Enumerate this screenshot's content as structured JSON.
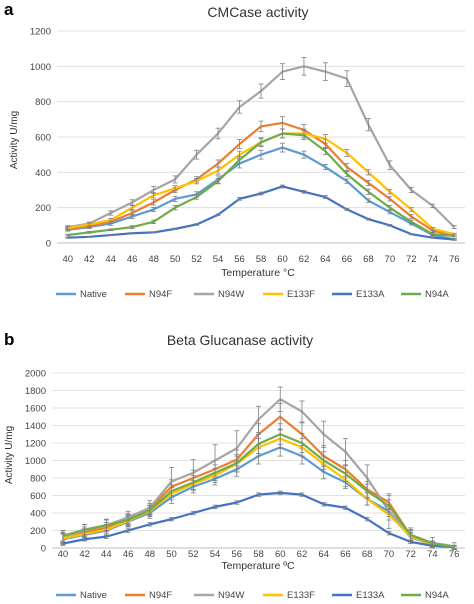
{
  "colors": {
    "Native": "#5b9bd5",
    "N94F": "#ed7d31",
    "N94W": "#a5a5a5",
    "E133F": "#ffc000",
    "E133A": "#4472c4",
    "N94A": "#70ad47"
  },
  "chart_data": [
    {
      "panel_label": "a",
      "type": "line",
      "title": "CMCase activity",
      "xlabel": "Temperature °C",
      "ylabel": "Activity U/mg",
      "ylim": [
        0,
        1200
      ],
      "yticks": [
        0,
        200,
        400,
        600,
        800,
        1000,
        1200
      ],
      "grid": "horizontal",
      "legend_position": "bottom",
      "categories": [
        "40",
        "42",
        "44",
        "46",
        "48",
        "50",
        "52",
        "54",
        "56",
        "58",
        "60",
        "62",
        "64",
        "66",
        "68",
        "70",
        "72",
        "74",
        "76"
      ],
      "series": [
        {
          "name": "Native",
          "values": [
            75,
            90,
            110,
            150,
            190,
            250,
            275,
            360,
            450,
            500,
            540,
            500,
            430,
            350,
            240,
            175,
            110,
            45,
            20
          ],
          "errors": [
            8,
            8,
            10,
            12,
            12,
            15,
            15,
            20,
            25,
            25,
            25,
            20,
            15,
            12,
            10,
            10,
            8,
            5,
            5
          ]
        },
        {
          "name": "N94F",
          "values": [
            80,
            95,
            120,
            170,
            230,
            300,
            360,
            450,
            560,
            660,
            680,
            640,
            560,
            430,
            340,
            250,
            150,
            70,
            40
          ],
          "errors": [
            8,
            8,
            10,
            12,
            15,
            15,
            15,
            20,
            25,
            30,
            35,
            30,
            25,
            20,
            15,
            12,
            10,
            8,
            5
          ]
        },
        {
          "name": "N94W",
          "values": [
            90,
            110,
            170,
            230,
            300,
            360,
            500,
            620,
            770,
            860,
            970,
            1000,
            970,
            930,
            670,
            440,
            300,
            210,
            90
          ],
          "errors": [
            8,
            8,
            12,
            15,
            20,
            20,
            25,
            30,
            35,
            40,
            45,
            50,
            50,
            45,
            35,
            25,
            15,
            10,
            8
          ]
        },
        {
          "name": "E133F",
          "values": [
            85,
            105,
            130,
            200,
            270,
            310,
            350,
            410,
            500,
            570,
            620,
            620,
            590,
            510,
            400,
            290,
            190,
            80,
            50
          ],
          "errors": [
            8,
            8,
            10,
            12,
            15,
            15,
            15,
            20,
            20,
            25,
            25,
            25,
            25,
            20,
            15,
            12,
            10,
            8,
            5
          ]
        },
        {
          "name": "E133A",
          "values": [
            30,
            35,
            45,
            55,
            60,
            80,
            105,
            160,
            250,
            280,
            320,
            290,
            260,
            190,
            135,
            100,
            50,
            30,
            20
          ],
          "errors": [
            3,
            3,
            3,
            3,
            3,
            4,
            5,
            5,
            8,
            8,
            8,
            8,
            8,
            6,
            5,
            5,
            3,
            3,
            3
          ]
        },
        {
          "name": "N94A",
          "values": [
            45,
            60,
            75,
            90,
            120,
            200,
            260,
            350,
            470,
            570,
            620,
            610,
            520,
            390,
            290,
            200,
            120,
            50,
            40
          ],
          "errors": [
            5,
            5,
            5,
            8,
            10,
            12,
            12,
            15,
            20,
            20,
            25,
            25,
            20,
            15,
            15,
            12,
            10,
            8,
            5
          ]
        }
      ]
    },
    {
      "panel_label": "b",
      "type": "line",
      "title": "Beta Glucanase activity",
      "xlabel": "Temperature ºC",
      "ylabel": "Activity U/mg",
      "ylim": [
        0,
        2000
      ],
      "yticks": [
        0,
        200,
        400,
        600,
        800,
        1000,
        1200,
        1400,
        1600,
        1800,
        2000
      ],
      "grid": "horizontal",
      "legend_position": "bottom",
      "categories": [
        "40",
        "42",
        "44",
        "46",
        "48",
        "50",
        "52",
        "54",
        "56",
        "58",
        "60",
        "62",
        "64",
        "66",
        "68",
        "70",
        "72",
        "74",
        "76"
      ],
      "series": [
        {
          "name": "Native",
          "values": [
            100,
            150,
            200,
            300,
            400,
            580,
            700,
            790,
            900,
            1050,
            1150,
            1050,
            870,
            750,
            560,
            420,
            120,
            40,
            10
          ],
          "errors": [
            60,
            60,
            60,
            60,
            60,
            70,
            70,
            70,
            80,
            90,
            100,
            90,
            80,
            70,
            70,
            60,
            50,
            30,
            20
          ]
        },
        {
          "name": "N94F",
          "values": [
            120,
            180,
            230,
            330,
            450,
            700,
            800,
            900,
            1010,
            1300,
            1500,
            1300,
            1050,
            900,
            670,
            520,
            140,
            30,
            10
          ],
          "errors": [
            60,
            60,
            60,
            60,
            60,
            80,
            90,
            100,
            110,
            120,
            150,
            130,
            120,
            100,
            90,
            80,
            60,
            30,
            20
          ]
        },
        {
          "name": "N94W",
          "values": [
            130,
            200,
            260,
            350,
            460,
            760,
            860,
            1000,
            1140,
            1470,
            1700,
            1560,
            1300,
            1100,
            800,
            420,
            150,
            60,
            20
          ],
          "errors": [
            70,
            70,
            70,
            70,
            80,
            160,
            150,
            180,
            200,
            150,
            140,
            120,
            150,
            150,
            150,
            200,
            80,
            60,
            40
          ]
        },
        {
          "name": "E133F",
          "values": [
            110,
            160,
            210,
            310,
            420,
            620,
            730,
            830,
            960,
            1150,
            1250,
            1150,
            960,
            780,
            560,
            380,
            130,
            40,
            10
          ],
          "errors": [
            60,
            60,
            60,
            60,
            60,
            70,
            70,
            80,
            90,
            100,
            110,
            100,
            90,
            80,
            70,
            60,
            50,
            30,
            20
          ]
        },
        {
          "name": "E133A",
          "values": [
            50,
            100,
            130,
            200,
            270,
            330,
            400,
            470,
            520,
            610,
            630,
            610,
            500,
            460,
            330,
            170,
            70,
            25,
            10
          ],
          "errors": [
            20,
            20,
            20,
            20,
            20,
            20,
            20,
            20,
            20,
            20,
            20,
            20,
            20,
            20,
            20,
            20,
            20,
            15,
            10
          ]
        },
        {
          "name": "N94A",
          "values": [
            140,
            210,
            260,
            320,
            430,
            650,
            750,
            860,
            970,
            1190,
            1300,
            1200,
            1000,
            850,
            650,
            480,
            150,
            50,
            10
          ],
          "errors": [
            60,
            60,
            60,
            60,
            60,
            70,
            80,
            90,
            100,
            110,
            120,
            110,
            100,
            90,
            80,
            70,
            60,
            30,
            20
          ]
        }
      ]
    }
  ]
}
